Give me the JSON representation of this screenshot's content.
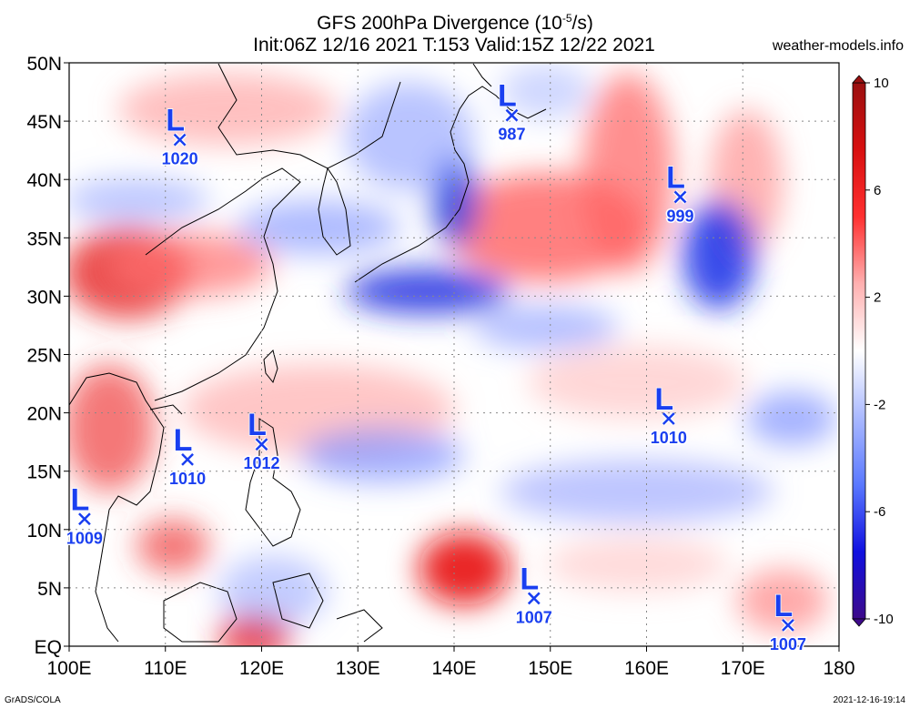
{
  "header": {
    "title_prefix": "GFS 200hPa Divergence (10",
    "title_exp": "-5",
    "title_suffix": "/s)",
    "subtitle": "Init:06Z 12/16 2021 T:153 Valid:15Z 12/22 2021",
    "site": "weather-models.info"
  },
  "footer": {
    "left": "GrADS/COLA",
    "right": "2021-12-16-19:14"
  },
  "map": {
    "lon_range": [
      100,
      180
    ],
    "lat_range": [
      0,
      50
    ],
    "lon_ticks": [
      {
        "v": 100,
        "label": "100E"
      },
      {
        "v": 110,
        "label": "110E"
      },
      {
        "v": 120,
        "label": "120E"
      },
      {
        "v": 130,
        "label": "130E"
      },
      {
        "v": 140,
        "label": "140E"
      },
      {
        "v": 150,
        "label": "150E"
      },
      {
        "v": 160,
        "label": "160E"
      },
      {
        "v": 170,
        "label": "170E"
      },
      {
        "v": 180,
        "label": "180"
      }
    ],
    "lat_ticks": [
      {
        "v": 0,
        "label": "EQ"
      },
      {
        "v": 5,
        "label": "5N"
      },
      {
        "v": 10,
        "label": "10N"
      },
      {
        "v": 15,
        "label": "15N"
      },
      {
        "v": 20,
        "label": "20N"
      },
      {
        "v": 25,
        "label": "25N"
      },
      {
        "v": 30,
        "label": "30N"
      },
      {
        "v": 35,
        "label": "35N"
      },
      {
        "v": 40,
        "label": "40N"
      },
      {
        "v": 45,
        "label": "45N"
      },
      {
        "v": 50,
        "label": "50N"
      }
    ],
    "grid": true,
    "lows": [
      {
        "lon": 111.5,
        "lat": 43.4,
        "label": "1020"
      },
      {
        "lon": 146.0,
        "lat": 45.5,
        "label": "987"
      },
      {
        "lon": 163.5,
        "lat": 38.5,
        "label": "999"
      },
      {
        "lon": 120.0,
        "lat": 17.3,
        "label": "1012"
      },
      {
        "lon": 112.3,
        "lat": 16.0,
        "label": "1010"
      },
      {
        "lon": 162.3,
        "lat": 19.5,
        "label": "1010"
      },
      {
        "lon": 101.6,
        "lat": 10.9,
        "label": "1009"
      },
      {
        "lon": 148.3,
        "lat": 4.1,
        "label": "1007"
      },
      {
        "lon": 174.7,
        "lat": 1.8,
        "label": "1007"
      }
    ],
    "low_symbol": "L",
    "low_color": "#1a3ff0"
  },
  "colorbar": {
    "labels": [
      {
        "v": 10,
        "label": "10"
      },
      {
        "v": 6,
        "label": "6"
      },
      {
        "v": 2,
        "label": "2"
      },
      {
        "v": -2,
        "label": "-2"
      },
      {
        "v": -6,
        "label": "-6"
      },
      {
        "v": -10,
        "label": "-10"
      }
    ],
    "stops": [
      "#3d0a8a",
      "#1010e0",
      "#5a78ff",
      "#aab9ff",
      "#ffffff",
      "#ffb0b0",
      "#ff3030",
      "#d81010",
      "#9a1010"
    ]
  },
  "chart_data": {
    "type": "heatmap",
    "title": "GFS 200hPa Divergence (10-5/s)",
    "xlabel": "",
    "ylabel": "",
    "xlim": [
      100,
      180
    ],
    "ylim": [
      0,
      50
    ],
    "colorbar_range": [
      -10,
      10
    ],
    "colorbar_ticks": [
      10,
      6,
      2,
      -2,
      -6,
      -10
    ]
  }
}
